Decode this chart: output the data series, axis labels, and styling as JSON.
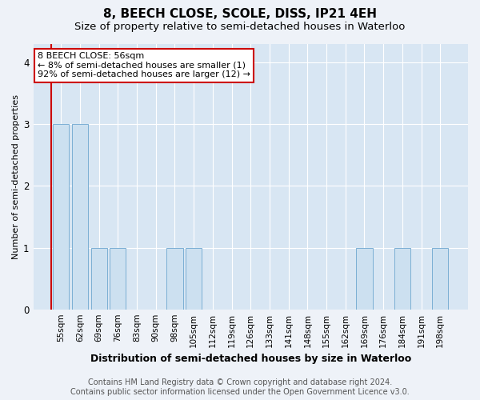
{
  "title": "8, BEECH CLOSE, SCOLE, DISS, IP21 4EH",
  "subtitle": "Size of property relative to semi-detached houses in Waterloo",
  "xlabel": "Distribution of semi-detached houses by size in Waterloo",
  "ylabel": "Number of semi-detached properties",
  "categories": [
    "55sqm",
    "62sqm",
    "69sqm",
    "76sqm",
    "83sqm",
    "90sqm",
    "98sqm",
    "105sqm",
    "112sqm",
    "119sqm",
    "126sqm",
    "133sqm",
    "141sqm",
    "148sqm",
    "155sqm",
    "162sqm",
    "169sqm",
    "176sqm",
    "184sqm",
    "191sqm",
    "198sqm"
  ],
  "values": [
    3,
    3,
    1,
    1,
    0,
    0,
    1,
    1,
    0,
    0,
    0,
    0,
    0,
    0,
    0,
    0,
    1,
    0,
    1,
    0,
    1
  ],
  "bar_color": "#cce0f0",
  "bar_edge_color": "#7bafd4",
  "annotation_line1": "8 BEECH CLOSE: 56sqm",
  "annotation_line2": "← 8% of semi-detached houses are smaller (1)",
  "annotation_line3": "92% of semi-detached houses are larger (12) →",
  "annotation_box_facecolor": "#ffffff",
  "annotation_box_edgecolor": "#cc0000",
  "marker_line_color": "#cc0000",
  "ylim": [
    0,
    4.3
  ],
  "yticks": [
    0,
    1,
    2,
    3,
    4
  ],
  "footer_line1": "Contains HM Land Registry data © Crown copyright and database right 2024.",
  "footer_line2": "Contains public sector information licensed under the Open Government Licence v3.0.",
  "bg_color": "#eef2f8",
  "plot_bg_color": "#d8e6f3",
  "grid_color": "#ffffff",
  "title_fontsize": 11,
  "subtitle_fontsize": 9.5,
  "xlabel_fontsize": 9,
  "ylabel_fontsize": 8,
  "tick_fontsize": 7.5,
  "annotation_fontsize": 8,
  "footer_fontsize": 7
}
